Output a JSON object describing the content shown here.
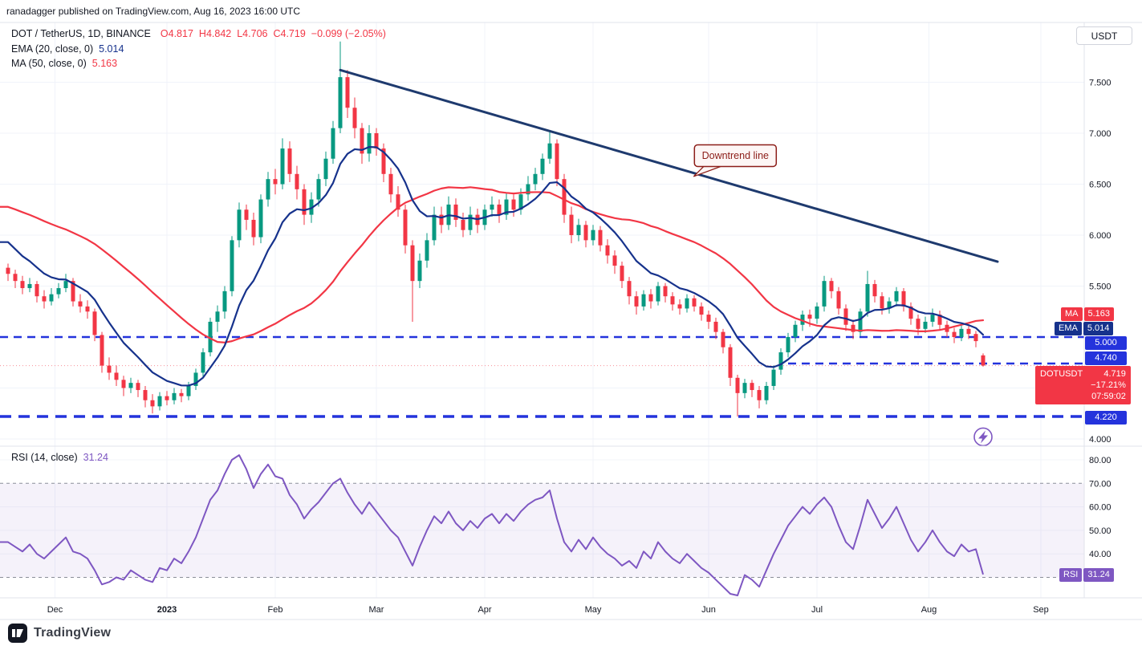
{
  "ui": {
    "attribution": "ranadagger published on TradingView.com, Aug 16, 2023 16:00 UTC",
    "currency_button": "USDT",
    "legend": {
      "symbol": "DOT / TetherUS, 1D, BINANCE",
      "o": "O4.817",
      "h": "H4.842",
      "l": "L4.706",
      "c": "C4.719",
      "change": "−0.099 (−2.05%)",
      "ema_label": "EMA (20, close, 0)",
      "ema_value": "5.014",
      "ma_label": "MA (50, close, 0)",
      "ma_value": "5.163",
      "rsi_label": "RSI (14, close)",
      "rsi_value": "31.24"
    },
    "badges": {
      "ma_tag": "MA",
      "ma_value": "5.163",
      "ema_tag": "EMA",
      "ema_value": "5.014",
      "level_5000": "5.000",
      "level_4740": "4.740",
      "level_4220": "4.220",
      "symbol_tag": "DOTUSDT",
      "price": "4.719",
      "change_pct": "−17.21%",
      "countdown": "07:59:02",
      "rsi_tag": "RSI",
      "rsi_value": "31.24"
    },
    "footer_logo": "TradingView"
  },
  "colors": {
    "up": "#089981",
    "down": "#f23645",
    "ema": "#16328c",
    "ma": "#f23645",
    "rsi": "#7e57c2",
    "level": "#2433dc",
    "trend": "#1e3a6e",
    "callout": "#8c1d18",
    "text": "#131722",
    "axis_border": "#e0e3eb"
  },
  "chart_data": {
    "type": "candlestick",
    "symbol": "DOT / TetherUS",
    "interval": "1D",
    "exchange": "BINANCE",
    "last_price": 4.719,
    "candle_step_days": 2,
    "x_axis": {
      "ticks": [
        {
          "label": "Dec",
          "i": 6.5
        },
        {
          "label": "2023",
          "i": 22,
          "bold": true
        },
        {
          "label": "Feb",
          "i": 37
        },
        {
          "label": "Mar",
          "i": 51
        },
        {
          "label": "Apr",
          "i": 66
        },
        {
          "label": "May",
          "i": 81
        },
        {
          "label": "Jun",
          "i": 97
        },
        {
          "label": "Jul",
          "i": 112
        },
        {
          "label": "Aug",
          "i": 127.5
        },
        {
          "label": "Sep",
          "i": 143
        }
      ]
    },
    "y_axis": {
      "ticks": [
        7.5,
        7.0,
        6.5,
        6.0,
        5.5,
        4.0
      ],
      "range": [
        3.94,
        8.07
      ]
    },
    "rsi_axis": {
      "ticks": [
        80,
        70,
        60,
        50,
        40
      ],
      "band": [
        30,
        70
      ],
      "last": 31.24,
      "range": [
        18,
        86
      ]
    },
    "overlays": [
      {
        "label": "EMA (20, close, 0)",
        "value": 5.014,
        "color": "#16328c",
        "seed": 6.0,
        "alpha": 0.18
      },
      {
        "label": "MA (50, close, 0)",
        "value": 5.163,
        "color": "#f23645",
        "seed": 6.3,
        "window": 30
      }
    ],
    "levels": [
      {
        "label": "5.000",
        "price": 5.0
      },
      {
        "label": "4.740",
        "price": 4.74,
        "from_index": 108
      },
      {
        "label": "4.220",
        "price": 4.22,
        "thick": true
      }
    ],
    "annotations": {
      "trendline": {
        "label": "Downtrend line",
        "i1": 46,
        "p1": 7.62,
        "i2": 137,
        "p2": 5.74
      },
      "callout": {
        "text": "Downtrend line",
        "i": 100.7,
        "p": 6.78
      },
      "flash_icon": {
        "i": 135,
        "p": 4.02
      }
    },
    "candles": [
      [
        5.68,
        5.72,
        5.55,
        5.62
      ],
      [
        5.62,
        5.66,
        5.48,
        5.55
      ],
      [
        5.55,
        5.6,
        5.42,
        5.48
      ],
      [
        5.48,
        5.58,
        5.44,
        5.52
      ],
      [
        5.52,
        5.55,
        5.34,
        5.4
      ],
      [
        5.4,
        5.46,
        5.28,
        5.35
      ],
      [
        5.35,
        5.48,
        5.31,
        5.42
      ],
      [
        5.42,
        5.53,
        5.38,
        5.48
      ],
      [
        5.48,
        5.62,
        5.44,
        5.55
      ],
      [
        5.55,
        5.58,
        5.3,
        5.35
      ],
      [
        5.35,
        5.42,
        5.24,
        5.3
      ],
      [
        5.3,
        5.36,
        5.18,
        5.25
      ],
      [
        5.25,
        5.28,
        4.96,
        5.02
      ],
      [
        5.02,
        5.05,
        4.65,
        4.72
      ],
      [
        4.72,
        4.8,
        4.58,
        4.65
      ],
      [
        4.65,
        4.72,
        4.52,
        4.58
      ],
      [
        4.58,
        4.62,
        4.42,
        4.5
      ],
      [
        4.5,
        4.6,
        4.45,
        4.55
      ],
      [
        4.55,
        4.58,
        4.41,
        4.48
      ],
      [
        4.48,
        4.52,
        4.31,
        4.38
      ],
      [
        4.38,
        4.44,
        4.25,
        4.32
      ],
      [
        4.32,
        4.46,
        4.28,
        4.42
      ],
      [
        4.42,
        4.47,
        4.33,
        4.38
      ],
      [
        4.38,
        4.5,
        4.34,
        4.45
      ],
      [
        4.45,
        4.49,
        4.36,
        4.42
      ],
      [
        4.42,
        4.56,
        4.38,
        4.52
      ],
      [
        4.52,
        4.69,
        4.48,
        4.65
      ],
      [
        4.65,
        4.89,
        4.6,
        4.85
      ],
      [
        4.85,
        5.19,
        4.81,
        5.15
      ],
      [
        5.15,
        5.31,
        5.05,
        5.25
      ],
      [
        5.25,
        5.5,
        5.18,
        5.45
      ],
      [
        5.45,
        5.99,
        5.4,
        5.95
      ],
      [
        5.95,
        6.32,
        5.88,
        6.25
      ],
      [
        6.25,
        6.3,
        6.05,
        6.15
      ],
      [
        6.15,
        6.22,
        5.9,
        5.98
      ],
      [
        5.98,
        6.4,
        5.92,
        6.35
      ],
      [
        6.35,
        6.62,
        6.28,
        6.55
      ],
      [
        6.55,
        6.65,
        6.4,
        6.5
      ],
      [
        6.5,
        6.95,
        6.45,
        6.85
      ],
      [
        6.85,
        6.92,
        6.52,
        6.6
      ],
      [
        6.6,
        6.68,
        6.35,
        6.45
      ],
      [
        6.45,
        6.5,
        6.1,
        6.2
      ],
      [
        6.2,
        6.42,
        6.12,
        6.35
      ],
      [
        6.35,
        6.6,
        6.28,
        6.55
      ],
      [
        6.55,
        6.82,
        6.48,
        6.75
      ],
      [
        6.75,
        7.12,
        6.7,
        7.05
      ],
      [
        7.05,
        7.9,
        7.0,
        7.55
      ],
      [
        7.55,
        7.62,
        7.15,
        7.25
      ],
      [
        7.25,
        7.35,
        6.95,
        7.05
      ],
      [
        7.05,
        7.1,
        6.7,
        6.8
      ],
      [
        6.8,
        7.08,
        6.72,
        7.0
      ],
      [
        7.0,
        7.05,
        6.78,
        6.85
      ],
      [
        6.85,
        6.9,
        6.52,
        6.6
      ],
      [
        6.6,
        6.66,
        6.32,
        6.4
      ],
      [
        6.4,
        6.48,
        6.18,
        6.25
      ],
      [
        6.25,
        6.3,
        5.82,
        5.9
      ],
      [
        5.9,
        5.95,
        5.15,
        5.55
      ],
      [
        5.55,
        5.82,
        5.48,
        5.75
      ],
      [
        5.75,
        6.02,
        5.68,
        5.95
      ],
      [
        5.95,
        6.28,
        5.9,
        6.2
      ],
      [
        6.2,
        6.28,
        6.02,
        6.1
      ],
      [
        6.1,
        6.38,
        6.05,
        6.3
      ],
      [
        6.3,
        6.36,
        6.08,
        6.15
      ],
      [
        6.15,
        6.22,
        5.98,
        6.05
      ],
      [
        6.05,
        6.28,
        6.0,
        6.2
      ],
      [
        6.2,
        6.26,
        6.02,
        6.1
      ],
      [
        6.1,
        6.3,
        6.05,
        6.25
      ],
      [
        6.25,
        6.38,
        6.18,
        6.3
      ],
      [
        6.3,
        6.35,
        6.12,
        6.2
      ],
      [
        6.2,
        6.42,
        6.15,
        6.35
      ],
      [
        6.35,
        6.4,
        6.18,
        6.25
      ],
      [
        6.25,
        6.46,
        6.2,
        6.4
      ],
      [
        6.4,
        6.58,
        6.34,
        6.5
      ],
      [
        6.5,
        6.66,
        6.44,
        6.6
      ],
      [
        6.6,
        6.8,
        6.54,
        6.75
      ],
      [
        6.75,
        7.02,
        6.7,
        6.9
      ],
      [
        6.9,
        6.94,
        6.48,
        6.55
      ],
      [
        6.55,
        6.6,
        6.12,
        6.2
      ],
      [
        6.2,
        6.28,
        5.92,
        6.0
      ],
      [
        6.0,
        6.16,
        5.94,
        6.1
      ],
      [
        6.1,
        6.14,
        5.88,
        5.95
      ],
      [
        5.95,
        6.1,
        5.9,
        6.05
      ],
      [
        6.05,
        6.09,
        5.84,
        5.9
      ],
      [
        5.9,
        5.96,
        5.72,
        5.8
      ],
      [
        5.8,
        5.85,
        5.62,
        5.7
      ],
      [
        5.7,
        5.74,
        5.48,
        5.55
      ],
      [
        5.55,
        5.59,
        5.32,
        5.4
      ],
      [
        5.4,
        5.45,
        5.22,
        5.3
      ],
      [
        5.3,
        5.46,
        5.26,
        5.42
      ],
      [
        5.42,
        5.47,
        5.28,
        5.35
      ],
      [
        5.35,
        5.54,
        5.31,
        5.5
      ],
      [
        5.5,
        5.53,
        5.34,
        5.4
      ],
      [
        5.4,
        5.44,
        5.26,
        5.32
      ],
      [
        5.32,
        5.37,
        5.22,
        5.28
      ],
      [
        5.28,
        5.42,
        5.24,
        5.38
      ],
      [
        5.38,
        5.41,
        5.25,
        5.3
      ],
      [
        5.3,
        5.34,
        5.16,
        5.22
      ],
      [
        5.22,
        5.26,
        5.08,
        5.15
      ],
      [
        5.15,
        5.19,
        4.98,
        5.05
      ],
      [
        5.05,
        5.08,
        4.84,
        4.9
      ],
      [
        4.9,
        4.93,
        4.52,
        4.6
      ],
      [
        4.6,
        4.63,
        4.22,
        4.45
      ],
      [
        4.45,
        4.59,
        4.4,
        4.55
      ],
      [
        4.55,
        4.58,
        4.41,
        4.48
      ],
      [
        4.48,
        4.52,
        4.3,
        4.38
      ],
      [
        4.38,
        4.56,
        4.34,
        4.52
      ],
      [
        4.52,
        4.72,
        4.48,
        4.68
      ],
      [
        4.68,
        4.89,
        4.63,
        4.85
      ],
      [
        4.85,
        5.04,
        4.8,
        5.0
      ],
      [
        5.0,
        5.16,
        4.95,
        5.12
      ],
      [
        5.12,
        5.26,
        5.06,
        5.22
      ],
      [
        5.22,
        5.27,
        5.1,
        5.18
      ],
      [
        5.18,
        5.34,
        5.13,
        5.3
      ],
      [
        5.3,
        5.6,
        5.25,
        5.55
      ],
      [
        5.55,
        5.58,
        5.38,
        5.45
      ],
      [
        5.45,
        5.49,
        5.22,
        5.28
      ],
      [
        5.28,
        5.32,
        5.06,
        5.12
      ],
      [
        5.12,
        5.17,
        4.98,
        5.05
      ],
      [
        5.05,
        5.28,
        5.01,
        5.25
      ],
      [
        5.25,
        5.65,
        5.2,
        5.52
      ],
      [
        5.52,
        5.56,
        5.34,
        5.4
      ],
      [
        5.4,
        5.44,
        5.22,
        5.28
      ],
      [
        5.28,
        5.39,
        5.23,
        5.35
      ],
      [
        5.35,
        5.49,
        5.3,
        5.45
      ],
      [
        5.45,
        5.48,
        5.25,
        5.3
      ],
      [
        5.3,
        5.34,
        5.12,
        5.18
      ],
      [
        5.18,
        5.22,
        5.02,
        5.08
      ],
      [
        5.08,
        5.2,
        5.04,
        5.15
      ],
      [
        5.15,
        5.28,
        5.1,
        5.22
      ],
      [
        5.22,
        5.26,
        5.07,
        5.12
      ],
      [
        5.12,
        5.16,
        5.0,
        5.05
      ],
      [
        5.05,
        5.09,
        4.94,
        5.0
      ],
      [
        5.0,
        5.12,
        4.96,
        5.08
      ],
      [
        5.08,
        5.11,
        4.98,
        5.03
      ],
      [
        5.03,
        5.06,
        4.9,
        4.96
      ],
      [
        4.82,
        4.84,
        4.71,
        4.72
      ]
    ],
    "rsi": [
      45,
      43,
      41,
      44,
      40,
      38,
      41,
      44,
      47,
      41,
      40,
      38,
      33,
      27,
      28,
      30,
      29,
      33,
      31,
      29,
      28,
      34,
      33,
      38,
      36,
      41,
      47,
      55,
      63,
      67,
      74,
      80,
      82,
      76,
      68,
      74,
      78,
      73,
      72,
      65,
      61,
      55,
      59,
      62,
      66,
      70,
      72,
      66,
      61,
      57,
      62,
      58,
      54,
      50,
      47,
      41,
      35,
      43,
      50,
      56,
      53,
      58,
      53,
      50,
      54,
      51,
      55,
      57,
      53,
      57,
      54,
      58,
      61,
      63,
      64,
      67,
      55,
      45,
      41,
      46,
      42,
      47,
      43,
      40,
      38,
      35,
      37,
      34,
      41,
      38,
      45,
      41,
      38,
      36,
      40,
      37,
      34,
      32,
      29,
      26,
      23,
      22,
      31,
      29,
      26,
      33,
      40,
      46,
      52,
      56,
      60,
      57,
      61,
      64,
      60,
      52,
      45,
      42,
      52,
      63,
      57,
      51,
      55,
      60,
      53,
      46,
      41,
      45,
      50,
      45,
      41,
      39,
      44,
      41,
      42,
      31.24
    ]
  }
}
